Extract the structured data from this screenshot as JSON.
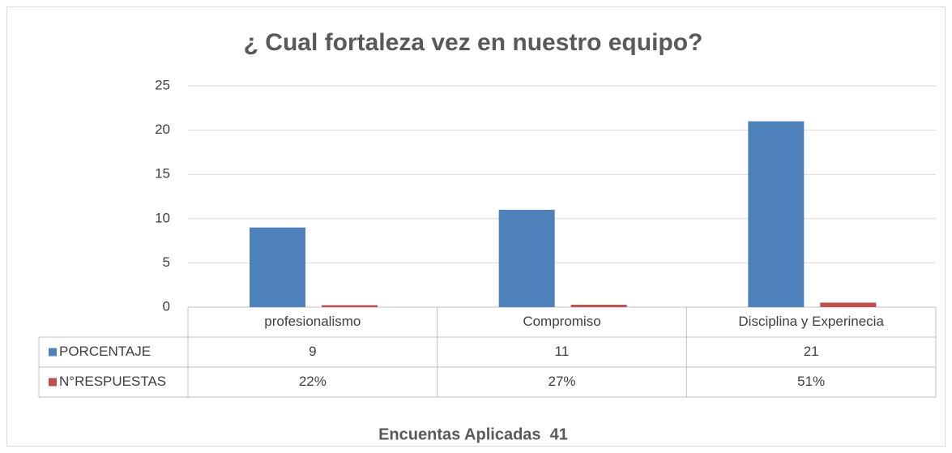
{
  "chart_data": {
    "type": "bar",
    "title": "¿ Cual fortaleza vez en nuestro equipo?",
    "categories": [
      "profesionalismo",
      "Compromiso",
      "Disciplina y Experinecia"
    ],
    "series": [
      {
        "name": "PORCENTAJE",
        "color": "#4f81bd",
        "values": [
          9,
          11,
          21
        ]
      },
      {
        "name": "N°RESPUESTAS",
        "color": "#c0504d",
        "values": [
          0.22,
          0.27,
          0.51
        ],
        "value_labels": [
          "22%",
          "27%",
          "51%"
        ]
      }
    ],
    "ylim": [
      0,
      25
    ],
    "yticks": [
      0,
      5,
      10,
      15,
      20,
      25
    ],
    "grid": true,
    "footer": "Encuentas Aplicadas  41"
  }
}
